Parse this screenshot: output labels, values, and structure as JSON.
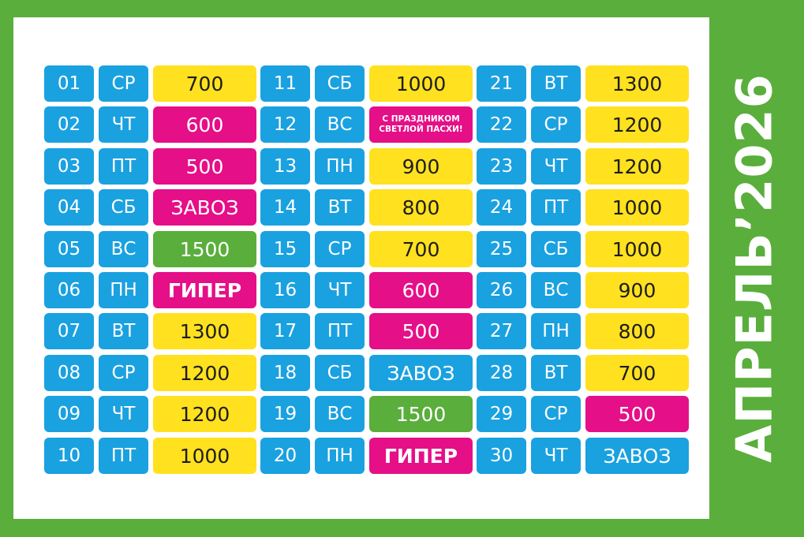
{
  "title": "АПРЕЛЬ’2026",
  "colors": {
    "border_green": "#5aae3c",
    "blue": "#1aa1e0",
    "yellow": "#ffe11f",
    "magenta": "#e50f88",
    "green": "#5aae3c",
    "white": "#ffffff"
  },
  "columns": [
    {
      "days": [
        {
          "num": "01",
          "weekday": "СР",
          "value": "700",
          "color": "yellow"
        },
        {
          "num": "02",
          "weekday": "ЧТ",
          "value": "600",
          "color": "magenta"
        },
        {
          "num": "03",
          "weekday": "ПТ",
          "value": "500",
          "color": "magenta"
        },
        {
          "num": "04",
          "weekday": "СБ",
          "value": "ЗАВОЗ",
          "color": "magenta"
        },
        {
          "num": "05",
          "weekday": "ВС",
          "value": "1500",
          "color": "green"
        },
        {
          "num": "06",
          "weekday": "ПН",
          "value": "ГИПЕР",
          "color": "magenta",
          "bold": true
        },
        {
          "num": "07",
          "weekday": "ВТ",
          "value": "1300",
          "color": "yellow"
        },
        {
          "num": "08",
          "weekday": "СР",
          "value": "1200",
          "color": "yellow"
        },
        {
          "num": "09",
          "weekday": "ЧТ",
          "value": "1200",
          "color": "yellow"
        },
        {
          "num": "10",
          "weekday": "ПТ",
          "value": "1000",
          "color": "yellow"
        }
      ]
    },
    {
      "days": [
        {
          "num": "11",
          "weekday": "СБ",
          "value": "1000",
          "color": "yellow"
        },
        {
          "num": "12",
          "weekday": "ВС",
          "value": "С ПРАЗДНИКОМ СВЕТЛОЙ ПАСХИ!",
          "color": "magenta",
          "small": true
        },
        {
          "num": "13",
          "weekday": "ПН",
          "value": "900",
          "color": "yellow"
        },
        {
          "num": "14",
          "weekday": "ВТ",
          "value": "800",
          "color": "yellow"
        },
        {
          "num": "15",
          "weekday": "СР",
          "value": "700",
          "color": "yellow"
        },
        {
          "num": "16",
          "weekday": "ЧТ",
          "value": "600",
          "color": "magenta"
        },
        {
          "num": "17",
          "weekday": "ПТ",
          "value": "500",
          "color": "magenta"
        },
        {
          "num": "18",
          "weekday": "СБ",
          "value": "ЗАВОЗ",
          "color": "blue"
        },
        {
          "num": "19",
          "weekday": "ВС",
          "value": "1500",
          "color": "green"
        },
        {
          "num": "20",
          "weekday": "ПН",
          "value": "ГИПЕР",
          "color": "magenta",
          "bold": true
        }
      ]
    },
    {
      "days": [
        {
          "num": "21",
          "weekday": "ВТ",
          "value": "1300",
          "color": "yellow"
        },
        {
          "num": "22",
          "weekday": "СР",
          "value": "1200",
          "color": "yellow"
        },
        {
          "num": "23",
          "weekday": "ЧТ",
          "value": "1200",
          "color": "yellow"
        },
        {
          "num": "24",
          "weekday": "ПТ",
          "value": "1000",
          "color": "yellow"
        },
        {
          "num": "25",
          "weekday": "СБ",
          "value": "1000",
          "color": "yellow"
        },
        {
          "num": "26",
          "weekday": "ВС",
          "value": "900",
          "color": "yellow"
        },
        {
          "num": "27",
          "weekday": "ПН",
          "value": "800",
          "color": "yellow"
        },
        {
          "num": "28",
          "weekday": "ВТ",
          "value": "700",
          "color": "yellow"
        },
        {
          "num": "29",
          "weekday": "СР",
          "value": "500",
          "color": "magenta"
        },
        {
          "num": "30",
          "weekday": "ЧТ",
          "value": "ЗАВОЗ",
          "color": "blue"
        }
      ]
    }
  ]
}
